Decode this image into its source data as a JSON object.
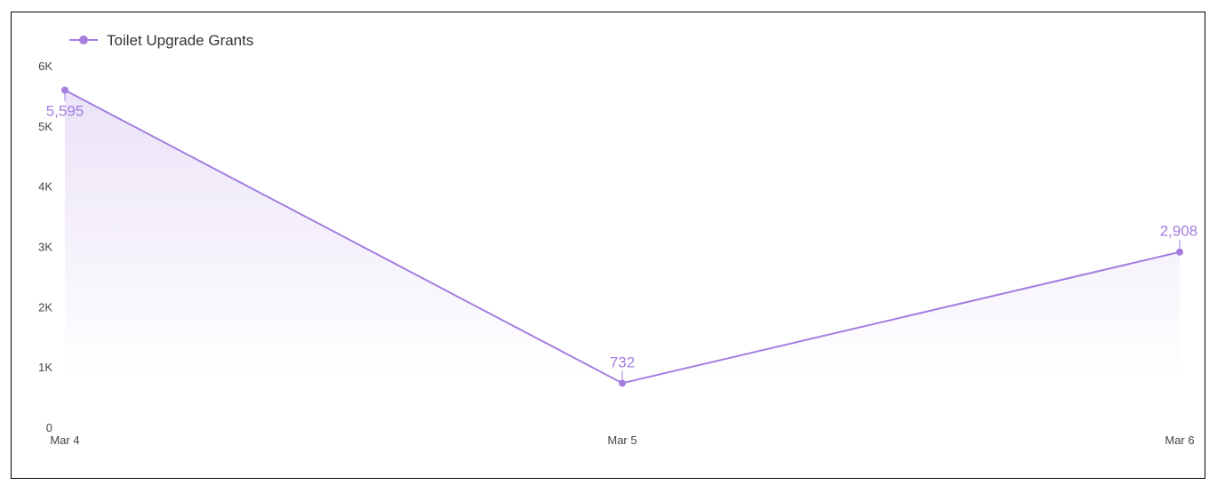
{
  "chart_data": {
    "type": "area",
    "title": "",
    "xlabel": "",
    "ylabel": "",
    "categories": [
      "Mar 4",
      "Mar 5",
      "Mar 6"
    ],
    "series": [
      {
        "name": "Toilet Upgrade Grants",
        "values": [
          5595,
          732,
          2908
        ],
        "labels": [
          "5,595",
          "732",
          "2,908"
        ]
      }
    ],
    "ylim": [
      0,
      6000
    ],
    "y_ticks": [
      0,
      1000,
      2000,
      3000,
      4000,
      5000,
      6000
    ],
    "y_tick_labels": [
      "0",
      "1K",
      "2K",
      "3K",
      "4K",
      "5K",
      "6K"
    ],
    "grid": false,
    "legend_position": "top-left",
    "colors": {
      "series": "#a57ee0",
      "fill": "#a57ee0"
    }
  }
}
